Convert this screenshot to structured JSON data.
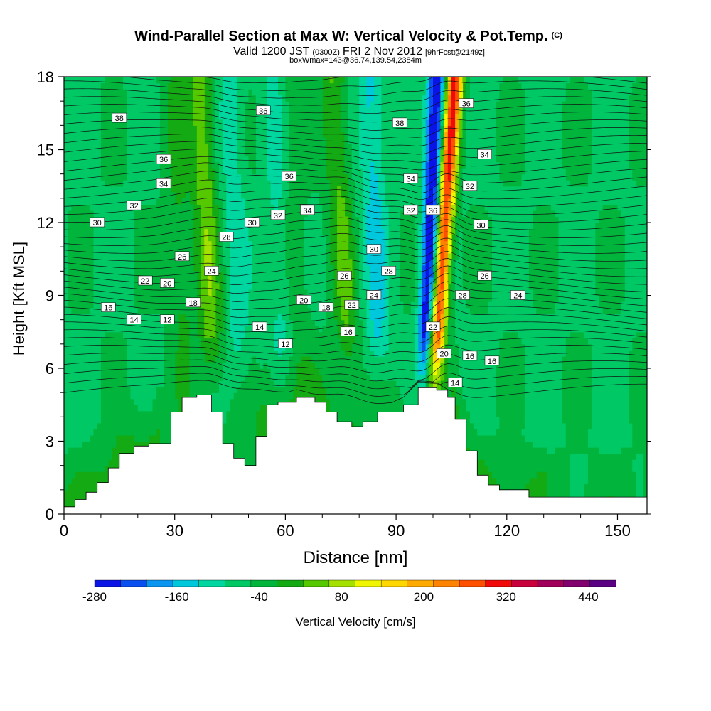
{
  "chart_data": {
    "type": "heatmap",
    "title": "Wind-Parallel Section at Max W: Vertical Velocity & Pot.Temp.",
    "title_mark": "(C)",
    "subtitle": {
      "valid": "Valid 1200 JST",
      "utc": "(0300Z)",
      "date": "FRI 2 Nov 2012",
      "fcst": "[9hrFcst@2149z]"
    },
    "info_line": "boxWmax=143@36.74,139.54,2384m",
    "xlabel": "Distance [nm]",
    "ylabel": "Height [Kft MSL]",
    "xlim": [
      0,
      158
    ],
    "ylim": [
      0,
      18
    ],
    "x_ticks": [
      "0",
      "30",
      "60",
      "90",
      "120",
      "150"
    ],
    "y_ticks": [
      "0",
      "3",
      "6",
      "9",
      "12",
      "15",
      "18"
    ],
    "colorbar": {
      "label": "Vertical Velocity [cm/s]",
      "tick_labels": [
        "-280",
        "-160",
        "-40",
        "80",
        "200",
        "320",
        "440"
      ],
      "levels_min": -280,
      "levels_max": 480,
      "step": 40,
      "colors": [
        "#0a14e6",
        "#0a50f0",
        "#0a96f0",
        "#00c8dc",
        "#00d7a0",
        "#00c864",
        "#00b43c",
        "#14aa14",
        "#55c800",
        "#a5e100",
        "#f0f500",
        "#ffd700",
        "#ffaa00",
        "#ff8200",
        "#ff5000",
        "#f00a0a",
        "#c8003c",
        "#a0005a",
        "#82006e",
        "#5a0082"
      ]
    },
    "terrain_kft": {
      "x": [
        0,
        3,
        6,
        9,
        12,
        15,
        19,
        23,
        29,
        32,
        36,
        40,
        43,
        46,
        49,
        52,
        55,
        58,
        63,
        68,
        71,
        74,
        78,
        81,
        85,
        88,
        92,
        96,
        101,
        104,
        106,
        109,
        112,
        115,
        118,
        121,
        126,
        158
      ],
      "height": [
        0.3,
        0.6,
        0.9,
        1.3,
        1.9,
        2.5,
        2.8,
        2.9,
        4.2,
        4.8,
        4.9,
        4.2,
        2.9,
        2.3,
        2.0,
        3.2,
        4.5,
        4.6,
        4.8,
        4.6,
        4.2,
        3.8,
        3.6,
        3.8,
        4.2,
        4.2,
        4.5,
        5.2,
        5.1,
        4.8,
        3.9,
        2.6,
        1.6,
        1.2,
        1.0,
        1.0,
        0.7,
        0.7
      ]
    },
    "updraft_bands": [
      {
        "x0": 41,
        "x1": 37,
        "w": 110
      },
      {
        "x0": 78,
        "x1": 73,
        "w": 90
      },
      {
        "x0": 99,
        "x1": 106,
        "w": 380
      },
      {
        "x0": 33,
        "x1": 30,
        "w": 50
      },
      {
        "x0": 64,
        "x1": 61,
        "w": 40
      }
    ],
    "downdraft_bands": [
      {
        "x0": 97,
        "x1": 101,
        "w": -260
      },
      {
        "x0": 48,
        "x1": 45,
        "w": -60
      },
      {
        "x0": 86,
        "x1": 83,
        "w": -90
      },
      {
        "x0": 60,
        "x1": 57,
        "w": -50
      }
    ],
    "theta_labels": [
      {
        "x": 15,
        "y": 16.3,
        "text": "38"
      },
      {
        "x": 27,
        "y": 14.6,
        "text": "36"
      },
      {
        "x": 27,
        "y": 13.6,
        "text": "34"
      },
      {
        "x": 19,
        "y": 12.7,
        "text": "32"
      },
      {
        "x": 9,
        "y": 12.0,
        "text": "30"
      },
      {
        "x": 44,
        "y": 11.4,
        "text": "28"
      },
      {
        "x": 32,
        "y": 10.6,
        "text": "26"
      },
      {
        "x": 40,
        "y": 10.0,
        "text": "24"
      },
      {
        "x": 22,
        "y": 9.6,
        "text": "22"
      },
      {
        "x": 28,
        "y": 9.5,
        "text": "20"
      },
      {
        "x": 35,
        "y": 8.7,
        "text": "18"
      },
      {
        "x": 12,
        "y": 8.5,
        "text": "16"
      },
      {
        "x": 19,
        "y": 8.0,
        "text": "14"
      },
      {
        "x": 28,
        "y": 8.0,
        "text": "12"
      },
      {
        "x": 54,
        "y": 16.6,
        "text": "36"
      },
      {
        "x": 61,
        "y": 13.9,
        "text": "36"
      },
      {
        "x": 58,
        "y": 12.3,
        "text": "32"
      },
      {
        "x": 66,
        "y": 12.5,
        "text": "34"
      },
      {
        "x": 51,
        "y": 12.0,
        "text": "30"
      },
      {
        "x": 65,
        "y": 8.8,
        "text": "20"
      },
      {
        "x": 71,
        "y": 8.5,
        "text": "18"
      },
      {
        "x": 53,
        "y": 7.7,
        "text": "14"
      },
      {
        "x": 60,
        "y": 7.0,
        "text": "12"
      },
      {
        "x": 76,
        "y": 9.8,
        "text": "26"
      },
      {
        "x": 78,
        "y": 8.6,
        "text": "22"
      },
      {
        "x": 77,
        "y": 7.5,
        "text": "16"
      },
      {
        "x": 84,
        "y": 9.0,
        "text": "24"
      },
      {
        "x": 84,
        "y": 10.9,
        "text": "30"
      },
      {
        "x": 88,
        "y": 10.0,
        "text": "28"
      },
      {
        "x": 91,
        "y": 16.1,
        "text": "38"
      },
      {
        "x": 94,
        "y": 13.8,
        "text": "34"
      },
      {
        "x": 94,
        "y": 12.5,
        "text": "32"
      },
      {
        "x": 100,
        "y": 12.5,
        "text": "36"
      },
      {
        "x": 109,
        "y": 16.9,
        "text": "36"
      },
      {
        "x": 114,
        "y": 14.8,
        "text": "34"
      },
      {
        "x": 110,
        "y": 13.5,
        "text": "32"
      },
      {
        "x": 113,
        "y": 11.9,
        "text": "30"
      },
      {
        "x": 114,
        "y": 9.8,
        "text": "26"
      },
      {
        "x": 108,
        "y": 9.0,
        "text": "28"
      },
      {
        "x": 123,
        "y": 9.0,
        "text": "24"
      },
      {
        "x": 100,
        "y": 7.7,
        "text": "22"
      },
      {
        "x": 103,
        "y": 6.6,
        "text": "20"
      },
      {
        "x": 110,
        "y": 6.5,
        "text": "16"
      },
      {
        "x": 116,
        "y": 6.3,
        "text": "16"
      },
      {
        "x": 106,
        "y": 5.4,
        "text": "14"
      }
    ]
  }
}
